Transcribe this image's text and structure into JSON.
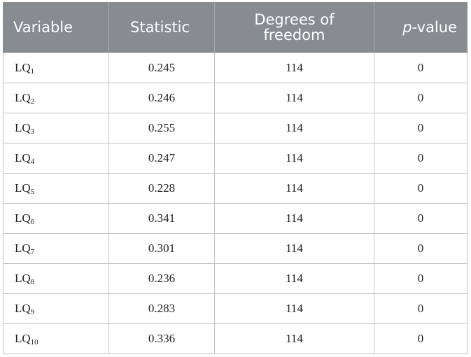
{
  "table": {
    "headers": {
      "variable": "Variable",
      "statistic": "Statistic",
      "df_line1": "Degrees of",
      "df_line2": "freedom",
      "p_italic": "p",
      "p_rest": "-value"
    },
    "rows": [
      {
        "var_base": "LQ",
        "var_sub": "1",
        "statistic": "0.245",
        "df": "114",
        "p": "0"
      },
      {
        "var_base": "LQ",
        "var_sub": "2",
        "statistic": "0.246",
        "df": "114",
        "p": "0"
      },
      {
        "var_base": "LQ",
        "var_sub": "3",
        "statistic": "0.255",
        "df": "114",
        "p": "0"
      },
      {
        "var_base": "LQ",
        "var_sub": "4",
        "statistic": "0.247",
        "df": "114",
        "p": "0"
      },
      {
        "var_base": "LQ",
        "var_sub": "5",
        "statistic": "0.228",
        "df": "114",
        "p": "0"
      },
      {
        "var_base": "LQ",
        "var_sub": "6",
        "statistic": "0.341",
        "df": "114",
        "p": "0"
      },
      {
        "var_base": "LQ",
        "var_sub": "7",
        "statistic": "0.301",
        "df": "114",
        "p": "0"
      },
      {
        "var_base": "LQ",
        "var_sub": "8",
        "statistic": "0.236",
        "df": "114",
        "p": "0"
      },
      {
        "var_base": "LQ",
        "var_sub": "9",
        "statistic": "0.283",
        "df": "114",
        "p": "0"
      },
      {
        "var_base": "LQ",
        "var_sub": "10",
        "statistic": "0.336",
        "df": "114",
        "p": "0"
      }
    ]
  }
}
